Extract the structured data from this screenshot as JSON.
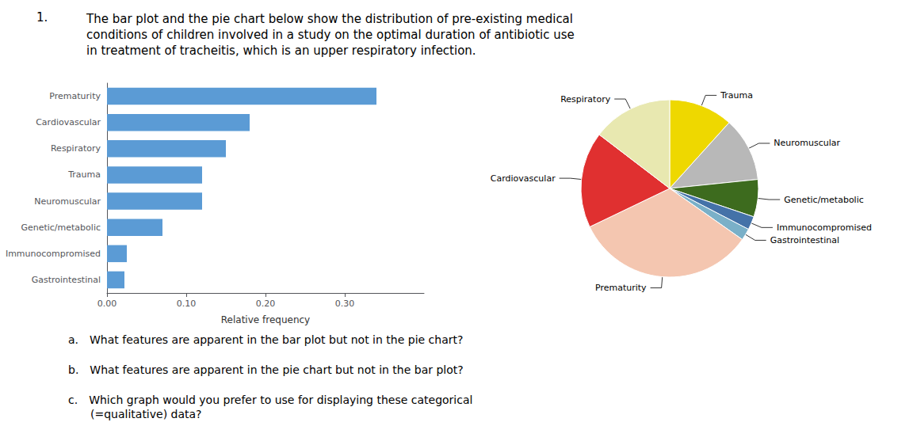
{
  "chart_data": [
    {
      "type": "bar",
      "title": "The bar plot and the pie chart below show the distribution of pre-existing medical\nconditions of children involved in a study on the optimal duration of antibiotic use\nin treatment of tracheitis, which is an upper respiratory infection.",
      "annotations": [
        "1.",
        "a. What features are apparent in the bar plot but not in the pie chart?",
        "b. What features are apparent in the pie chart but not in the bar plot?",
        "c. Which graph would you prefer to use for displaying these categorical\n  (=qualitative) data?"
      ],
      "orientation": "horizontal",
      "categories": [
        "Prematurity",
        "Cardiovascular",
        "Respiratory",
        "Trauma",
        "Neuromuscular",
        "Genetic/metabolic",
        "Immunocompromised",
        "Gastrointestinal"
      ],
      "values": [
        0.34,
        0.18,
        0.15,
        0.12,
        0.12,
        0.07,
        0.025,
        0.022
      ],
      "color": "#5b9bd5",
      "xlabel": "Relative frequency",
      "xlim": [
        0,
        0.4
      ],
      "xticks": [
        {
          "value": 0.0,
          "label": "0.00"
        },
        {
          "value": 0.1,
          "label": "0.10"
        },
        {
          "value": 0.2,
          "label": "0.20"
        },
        {
          "value": 0.3,
          "label": "0.30"
        }
      ],
      "grid": false
    },
    {
      "type": "pie",
      "categories": [
        "Trauma",
        "Neuromuscular",
        "Genetic/metabolic",
        "Immunocompromised",
        "Gastrointestinal",
        "Prematurity",
        "Cardiovascular",
        "Respiratory"
      ],
      "values": [
        0.12,
        0.12,
        0.07,
        0.025,
        0.022,
        0.34,
        0.18,
        0.15
      ],
      "colors": [
        "#eed800",
        "#b8b8b8",
        "#3d6b1e",
        "#4472a8",
        "#7ab0c8",
        "#f4c6b0",
        "#e03030",
        "#e8e8b0"
      ]
    }
  ]
}
